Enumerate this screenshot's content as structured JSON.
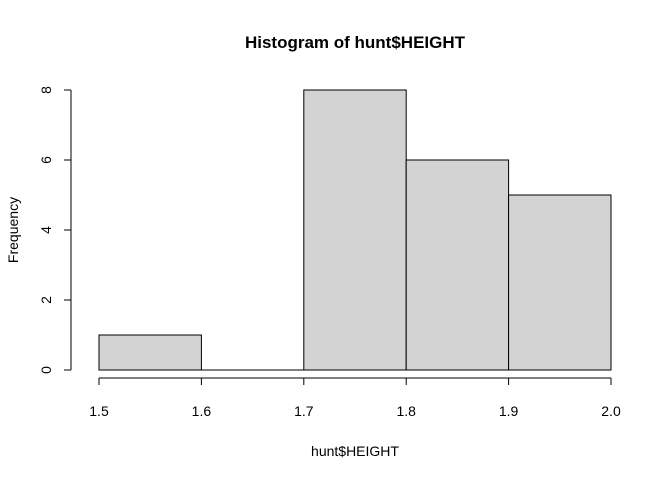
{
  "chart_data": {
    "type": "bar",
    "title": "Histogram of hunt$HEIGHT",
    "xlabel": "hunt$HEIGHT",
    "ylabel": "Frequency",
    "bins": [
      {
        "start": 1.5,
        "end": 1.6,
        "count": 1
      },
      {
        "start": 1.6,
        "end": 1.7,
        "count": 0
      },
      {
        "start": 1.7,
        "end": 1.8,
        "count": 8
      },
      {
        "start": 1.8,
        "end": 1.9,
        "count": 6
      },
      {
        "start": 1.9,
        "end": 2.0,
        "count": 5
      }
    ],
    "x_ticks": [
      "1.5",
      "1.6",
      "1.7",
      "1.8",
      "1.9",
      "2.0"
    ],
    "x_tick_values": [
      1.5,
      1.6,
      1.7,
      1.8,
      1.9,
      2.0
    ],
    "y_ticks": [
      "0",
      "2",
      "4",
      "6",
      "8"
    ],
    "y_tick_values": [
      0,
      2,
      4,
      6,
      8
    ],
    "xlim": [
      1.5,
      2.0
    ],
    "ylim": [
      0,
      8
    ],
    "grid": false,
    "bar_color": "#d3d3d3"
  }
}
